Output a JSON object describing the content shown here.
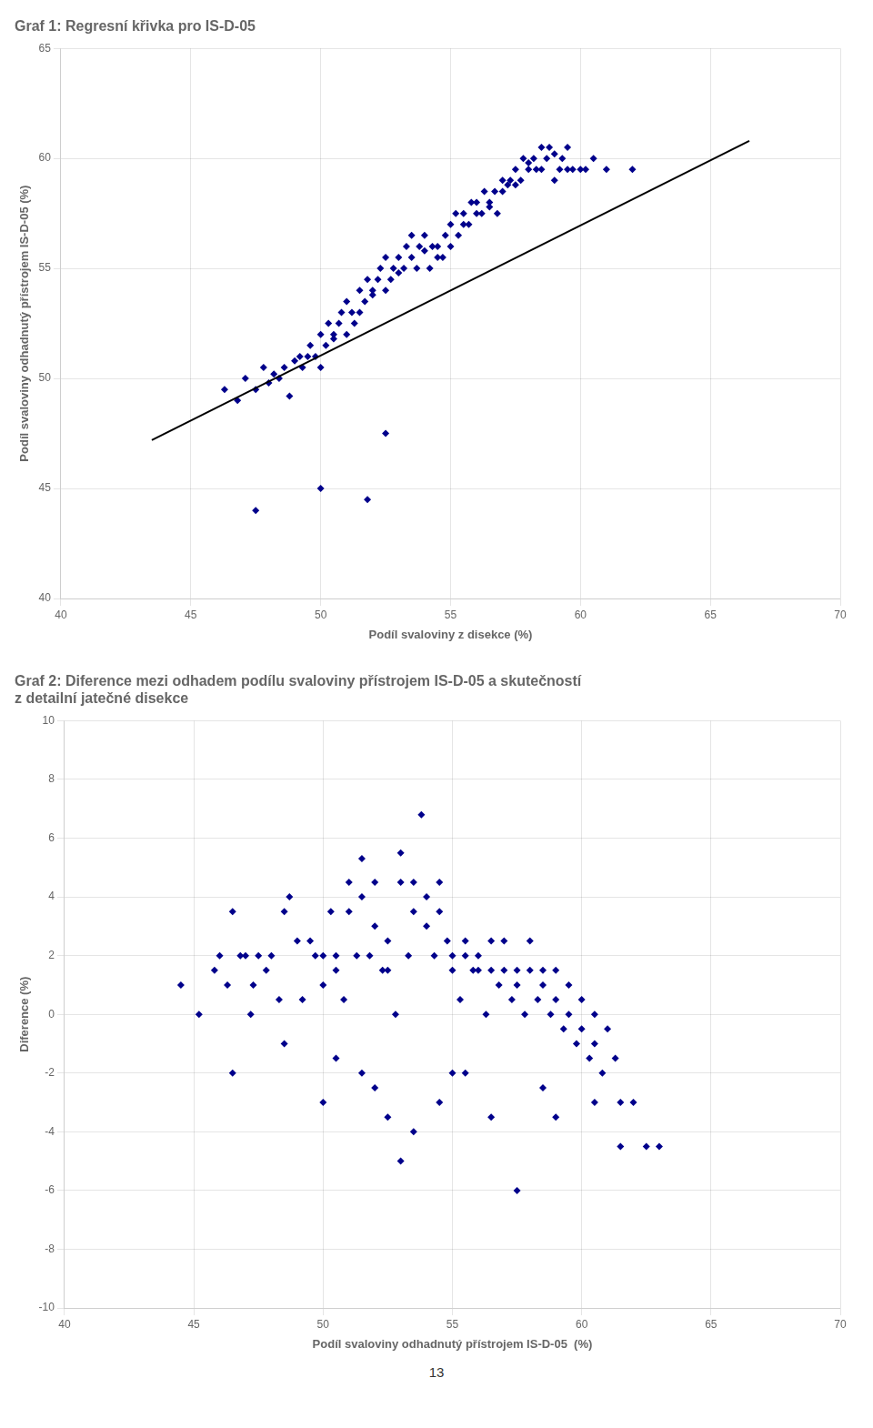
{
  "chart_data": [
    {
      "type": "scatter",
      "title": "Graf 1: Regresní křivka pro IS-D-05",
      "x_label": "Podíl svaloviny z disekce (%)",
      "y_label": "Podíl svaloviny odhadnutý přístrojem IS-D-05 (%)",
      "xlim": [
        40,
        70
      ],
      "ylim": [
        40,
        65
      ],
      "xticks": [
        40,
        45,
        50,
        55,
        60,
        65,
        70
      ],
      "yticks": [
        40,
        45,
        50,
        55,
        60,
        65
      ],
      "grid": true,
      "series": [
        {
          "type": "scatter",
          "color": "#00008B",
          "marker": "diamond",
          "x": [
            46.3,
            46.8,
            47.1,
            47.5,
            47.8,
            48.0,
            48.2,
            48.4,
            48.6,
            48.8,
            49.0,
            49.2,
            49.3,
            49.5,
            49.6,
            49.8,
            50.0,
            50.0,
            50.2,
            50.3,
            50.5,
            50.5,
            50.7,
            50.8,
            51.0,
            51.0,
            51.2,
            51.3,
            51.5,
            51.5,
            51.7,
            51.8,
            52.0,
            52.0,
            52.2,
            52.3,
            52.5,
            52.5,
            52.7,
            52.8,
            53.0,
            53.0,
            53.2,
            53.3,
            53.5,
            53.5,
            53.7,
            53.8,
            54.0,
            54.0,
            54.2,
            54.3,
            54.5,
            54.5,
            54.7,
            54.8,
            55.0,
            55.0,
            55.2,
            55.3,
            55.5,
            55.5,
            55.7,
            55.8,
            56.0,
            56.0,
            56.2,
            56.3,
            56.5,
            56.5,
            56.7,
            56.8,
            57.0,
            57.0,
            57.2,
            57.3,
            57.5,
            57.5,
            57.7,
            57.8,
            58.0,
            58.0,
            58.2,
            58.3,
            58.5,
            58.5,
            58.7,
            58.8,
            59.0,
            59.0,
            59.2,
            59.3,
            59.5,
            59.5,
            59.7,
            60.0,
            60.2,
            60.5,
            61.0,
            62.0,
            47.5,
            50.0,
            51.8,
            52.5
          ],
          "values": [
            49.5,
            49.0,
            50.0,
            49.5,
            50.5,
            49.8,
            50.2,
            50.0,
            50.5,
            49.2,
            50.8,
            51.0,
            50.5,
            51.0,
            51.5,
            51.0,
            50.5,
            52.0,
            51.5,
            52.5,
            52.0,
            51.8,
            52.5,
            53.0,
            52.0,
            53.5,
            53.0,
            52.5,
            54.0,
            53.0,
            53.5,
            54.5,
            53.8,
            54.0,
            54.5,
            55.0,
            54.0,
            55.5,
            54.5,
            55.0,
            55.5,
            54.8,
            55.0,
            56.0,
            55.5,
            56.5,
            55.0,
            56.0,
            56.5,
            55.8,
            55.0,
            56.0,
            55.5,
            56.0,
            55.5,
            56.5,
            57.0,
            56.0,
            57.5,
            56.5,
            57.0,
            57.5,
            57.0,
            58.0,
            57.5,
            58.0,
            57.5,
            58.5,
            57.8,
            58.0,
            58.5,
            57.5,
            59.0,
            58.5,
            58.8,
            59.0,
            59.5,
            58.8,
            59.0,
            60.0,
            59.5,
            59.8,
            60.0,
            59.5,
            60.5,
            59.5,
            60.0,
            60.5,
            60.2,
            59.0,
            59.5,
            60.0,
            60.5,
            59.5,
            59.5,
            59.5,
            59.5,
            60.0,
            59.5,
            59.5,
            44.0,
            45.0,
            44.5,
            47.5
          ]
        },
        {
          "type": "line",
          "color": "#000000",
          "line_style": "solid",
          "x": [
            43.5,
            66.5
          ],
          "values": [
            47.2,
            60.8
          ]
        }
      ]
    },
    {
      "type": "scatter",
      "title": [
        "Graf 2: Diference mezi odhadem podílu svaloviny přístrojem IS-D-05 a skutečností",
        "z detailní jatečné disekce"
      ],
      "x_label": "Podíl svaloviny odhadnutý přístrojem IS-D-05  (%)",
      "y_label": "Diference (%)",
      "xlim": [
        40,
        70
      ],
      "ylim": [
        -10,
        10
      ],
      "xticks": [
        40,
        45,
        50,
        55,
        60,
        65,
        70
      ],
      "yticks": [
        -10,
        -8,
        -6,
        -4,
        -2,
        0,
        2,
        4,
        6,
        8,
        10
      ],
      "grid": true,
      "annotations": [
        "13"
      ],
      "series": [
        {
          "type": "scatter",
          "color": "#00008B",
          "marker": "diamond",
          "x": [
            44.5,
            45.2,
            45.8,
            46.0,
            46.3,
            46.5,
            46.8,
            47.0,
            47.3,
            47.5,
            47.8,
            48.0,
            48.3,
            48.5,
            48.7,
            49.0,
            49.2,
            49.5,
            49.7,
            50.0,
            50.0,
            50.3,
            50.5,
            50.5,
            50.8,
            51.0,
            51.0,
            51.3,
            51.5,
            51.5,
            51.8,
            52.0,
            52.0,
            52.3,
            52.5,
            52.5,
            52.8,
            53.0,
            53.0,
            53.3,
            53.5,
            53.5,
            53.8,
            54.0,
            54.0,
            54.3,
            54.5,
            54.5,
            54.8,
            55.0,
            55.0,
            55.3,
            55.5,
            55.5,
            55.8,
            56.0,
            56.0,
            56.3,
            56.5,
            56.5,
            56.8,
            57.0,
            57.0,
            57.3,
            57.5,
            57.5,
            57.8,
            58.0,
            58.0,
            58.3,
            58.5,
            58.5,
            58.8,
            59.0,
            59.0,
            59.3,
            59.5,
            59.5,
            59.8,
            60.0,
            60.0,
            60.3,
            60.5,
            60.5,
            60.8,
            61.0,
            61.3,
            61.5,
            62.0,
            62.5,
            63.0,
            46.5,
            47.2,
            48.5,
            50.0,
            53.0,
            56.5,
            57.5,
            58.5,
            59.0,
            60.5,
            61.5,
            50.5,
            51.5,
            52.0,
            52.5,
            53.5,
            54.5,
            55.5,
            55.0
          ],
          "values": [
            1.0,
            0.0,
            1.5,
            2.0,
            1.0,
            3.5,
            2.0,
            2.0,
            1.0,
            2.0,
            1.5,
            2.0,
            0.5,
            3.5,
            4.0,
            2.5,
            0.5,
            2.5,
            2.0,
            2.0,
            1.0,
            3.5,
            2.0,
            1.5,
            0.5,
            4.5,
            3.5,
            2.0,
            5.3,
            4.0,
            2.0,
            4.5,
            3.0,
            1.5,
            2.5,
            1.5,
            0.0,
            5.5,
            4.5,
            2.0,
            4.5,
            3.5,
            6.8,
            4.0,
            3.0,
            2.0,
            4.5,
            3.5,
            2.5,
            2.0,
            1.5,
            0.5,
            2.5,
            2.0,
            1.5,
            2.0,
            1.5,
            0.0,
            2.5,
            1.5,
            1.0,
            2.5,
            1.5,
            0.5,
            1.5,
            1.0,
            0.0,
            2.5,
            1.5,
            0.5,
            1.5,
            1.0,
            0.0,
            1.5,
            0.5,
            -0.5,
            1.0,
            0.0,
            -1.0,
            0.5,
            -0.5,
            -1.5,
            0.0,
            -1.0,
            -2.0,
            -0.5,
            -1.5,
            -3.0,
            -3.0,
            -4.5,
            -4.5,
            -2.0,
            0.0,
            -1.0,
            -3.0,
            -5.0,
            -3.5,
            -6.0,
            -2.5,
            -3.5,
            -3.0,
            -4.5,
            -1.5,
            -2.0,
            -2.5,
            -3.5,
            -4.0,
            -3.0,
            -2.0,
            -2.0
          ]
        }
      ]
    }
  ]
}
